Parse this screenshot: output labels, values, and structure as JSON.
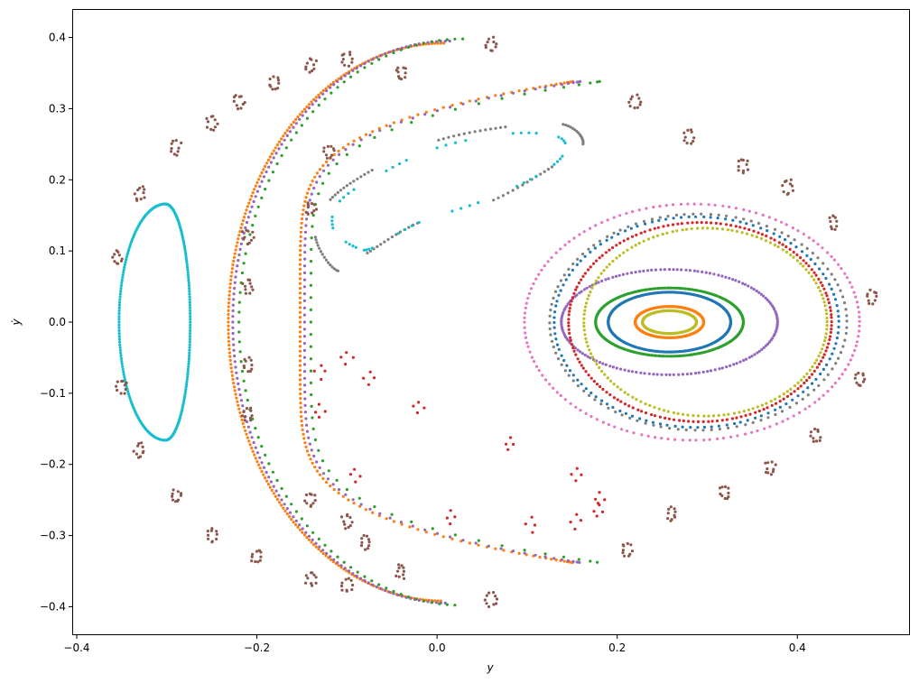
{
  "chart_data": {
    "type": "scatter",
    "title": "",
    "xlabel": "y",
    "ylabel": "ẏ",
    "xlim": [
      -0.405,
      0.525
    ],
    "ylim": [
      -0.44,
      0.44
    ],
    "xticks": [
      -0.4,
      -0.2,
      0.0,
      0.2,
      0.4
    ],
    "xtick_labels": [
      "−0.4",
      "−0.2",
      "0.0",
      "0.2",
      "0.4"
    ],
    "yticks": [
      -0.4,
      -0.3,
      -0.2,
      -0.1,
      0.0,
      0.1,
      0.2,
      0.3,
      0.4
    ],
    "ytick_labels": [
      "−0.4",
      "−0.3",
      "−0.2",
      "−0.1",
      "0.0",
      "0.1",
      "0.2",
      "0.3",
      "0.4"
    ],
    "grid": false,
    "series": [
      {
        "color": "#1f77b4",
        "kind": "ellipse",
        "center": [
          0.258,
          0.0
        ],
        "radii": [
          0.068,
          0.042
        ],
        "count": 260
      },
      {
        "color": "#2ca02c",
        "kind": "ellipse",
        "center": [
          0.258,
          0.0
        ],
        "radii": [
          0.082,
          0.048
        ],
        "count": 240
      },
      {
        "color": "#9467bd",
        "kind": "ellipse",
        "center": [
          0.258,
          0.0
        ],
        "radii": [
          0.12,
          0.074
        ],
        "count": 160
      },
      {
        "color": "#ff7f0e",
        "kind": "ellipse",
        "center": [
          0.258,
          0.0
        ],
        "radii": [
          0.038,
          0.022
        ],
        "count": 220
      },
      {
        "color": "#bcbd22",
        "kind": "ellipse",
        "center": [
          0.258,
          0.0
        ],
        "radii": [
          0.03,
          0.016
        ],
        "count": 200
      },
      {
        "color": "#bcbd22",
        "kind": "ellipse",
        "center": [
          0.298,
          0.0
        ],
        "radii": [
          0.135,
          0.132
        ],
        "count": 150
      },
      {
        "color": "#d62728",
        "kind": "ellipse",
        "center": [
          0.292,
          0.0
        ],
        "radii": [
          0.146,
          0.14
        ],
        "count": 170
      },
      {
        "color": "#1f77b4",
        "kind": "ellipse",
        "center": [
          0.288,
          0.0
        ],
        "radii": [
          0.158,
          0.148
        ],
        "count": 120
      },
      {
        "color": "#7f7f7f",
        "kind": "ellipse",
        "center": [
          0.29,
          0.0
        ],
        "radii": [
          0.165,
          0.152
        ],
        "count": 110
      },
      {
        "color": "#e377c2",
        "kind": "ellipse",
        "center": [
          0.283,
          0.0
        ],
        "radii": [
          0.186,
          0.166
        ],
        "count": 150
      },
      {
        "color": "#17becf",
        "kind": "banana",
        "x_outer": -0.335,
        "x_inner": -0.268,
        "ylim": 0.166,
        "count": 260
      },
      {
        "color": "#7f7f7f",
        "kind": "blob",
        "points": [
          [
            -0.11,
            0.072
          ],
          [
            -0.135,
            0.12
          ],
          [
            -0.12,
            0.17
          ],
          [
            -0.07,
            0.215
          ],
          [
            0.0,
            0.255
          ],
          [
            0.08,
            0.275
          ],
          [
            0.14,
            0.278
          ],
          [
            0.162,
            0.25
          ],
          [
            0.13,
            0.22
          ],
          [
            0.06,
            0.17
          ],
          [
            -0.02,
            0.14
          ],
          [
            -0.08,
            0.095
          ]
        ],
        "count": 170,
        "gaps": 6
      },
      {
        "color": "#17becf",
        "kind": "blob",
        "points": [
          [
            -0.09,
            0.105
          ],
          [
            -0.115,
            0.13
          ],
          [
            -0.108,
            0.17
          ],
          [
            -0.06,
            0.21
          ],
          [
            0.0,
            0.245
          ],
          [
            0.08,
            0.265
          ],
          [
            0.135,
            0.26
          ],
          [
            0.14,
            0.235
          ],
          [
            0.11,
            0.205
          ],
          [
            0.05,
            0.17
          ],
          [
            -0.02,
            0.14
          ],
          [
            -0.07,
            0.105
          ]
        ],
        "count": 90,
        "gaps": 12
      },
      {
        "color": "#ff7f0e",
        "kind": "crescent",
        "ymax": 0.392,
        "x_left": -0.157,
        "x_tip": 0.152,
        "count": 380
      },
      {
        "color": "#9467bd",
        "kind": "crescent",
        "ymax": 0.395,
        "x_left": -0.152,
        "x_tip": 0.16,
        "count": 260
      },
      {
        "color": "#2ca02c",
        "kind": "crescent",
        "ymax": 0.398,
        "x_left": -0.145,
        "x_tip": 0.182,
        "count": 150
      },
      {
        "color": "#8c564b",
        "kind": "islands",
        "centers": [
          [
            -0.355,
            0.09
          ],
          [
            -0.33,
            0.18
          ],
          [
            -0.29,
            0.245
          ],
          [
            -0.25,
            0.28
          ],
          [
            -0.22,
            0.31
          ],
          [
            -0.18,
            0.335
          ],
          [
            -0.14,
            0.36
          ],
          [
            -0.1,
            0.37
          ],
          [
            -0.04,
            0.35
          ],
          [
            0.06,
            0.39
          ],
          [
            0.22,
            0.31
          ],
          [
            0.28,
            0.26
          ],
          [
            0.34,
            0.22
          ],
          [
            0.39,
            0.19
          ],
          [
            0.44,
            0.14
          ],
          [
            0.483,
            0.035
          ],
          [
            -0.35,
            -0.09
          ],
          [
            -0.33,
            -0.18
          ],
          [
            -0.29,
            -0.245
          ],
          [
            -0.25,
            -0.3
          ],
          [
            -0.2,
            -0.33
          ],
          [
            -0.14,
            -0.36
          ],
          [
            -0.1,
            -0.37
          ],
          [
            -0.04,
            -0.35
          ],
          [
            0.06,
            -0.39
          ],
          [
            0.21,
            -0.32
          ],
          [
            0.26,
            -0.27
          ],
          [
            0.32,
            -0.24
          ],
          [
            0.37,
            -0.205
          ],
          [
            0.42,
            -0.16
          ],
          [
            0.47,
            -0.08
          ],
          [
            -0.21,
            0.12
          ],
          [
            -0.21,
            0.05
          ],
          [
            -0.21,
            -0.06
          ],
          [
            -0.21,
            -0.13
          ],
          [
            -0.14,
            0.16
          ],
          [
            -0.14,
            -0.25
          ],
          [
            -0.12,
            0.24
          ],
          [
            -0.1,
            -0.28
          ],
          [
            -0.08,
            -0.31
          ]
        ],
        "count": 420
      },
      {
        "color": "#d62728",
        "kind": "islands",
        "centers": [
          [
            -0.13,
            -0.07
          ],
          [
            -0.1,
            -0.05
          ],
          [
            -0.075,
            -0.08
          ],
          [
            -0.02,
            -0.12
          ],
          [
            0.08,
            -0.17
          ],
          [
            -0.09,
            -0.215
          ],
          [
            0.015,
            -0.275
          ],
          [
            0.105,
            -0.285
          ],
          [
            0.155,
            -0.215
          ],
          [
            0.18,
            -0.248
          ],
          [
            0.155,
            -0.28
          ],
          [
            0.178,
            -0.265
          ],
          [
            -0.13,
            -0.125
          ]
        ],
        "count": 60
      }
    ]
  }
}
